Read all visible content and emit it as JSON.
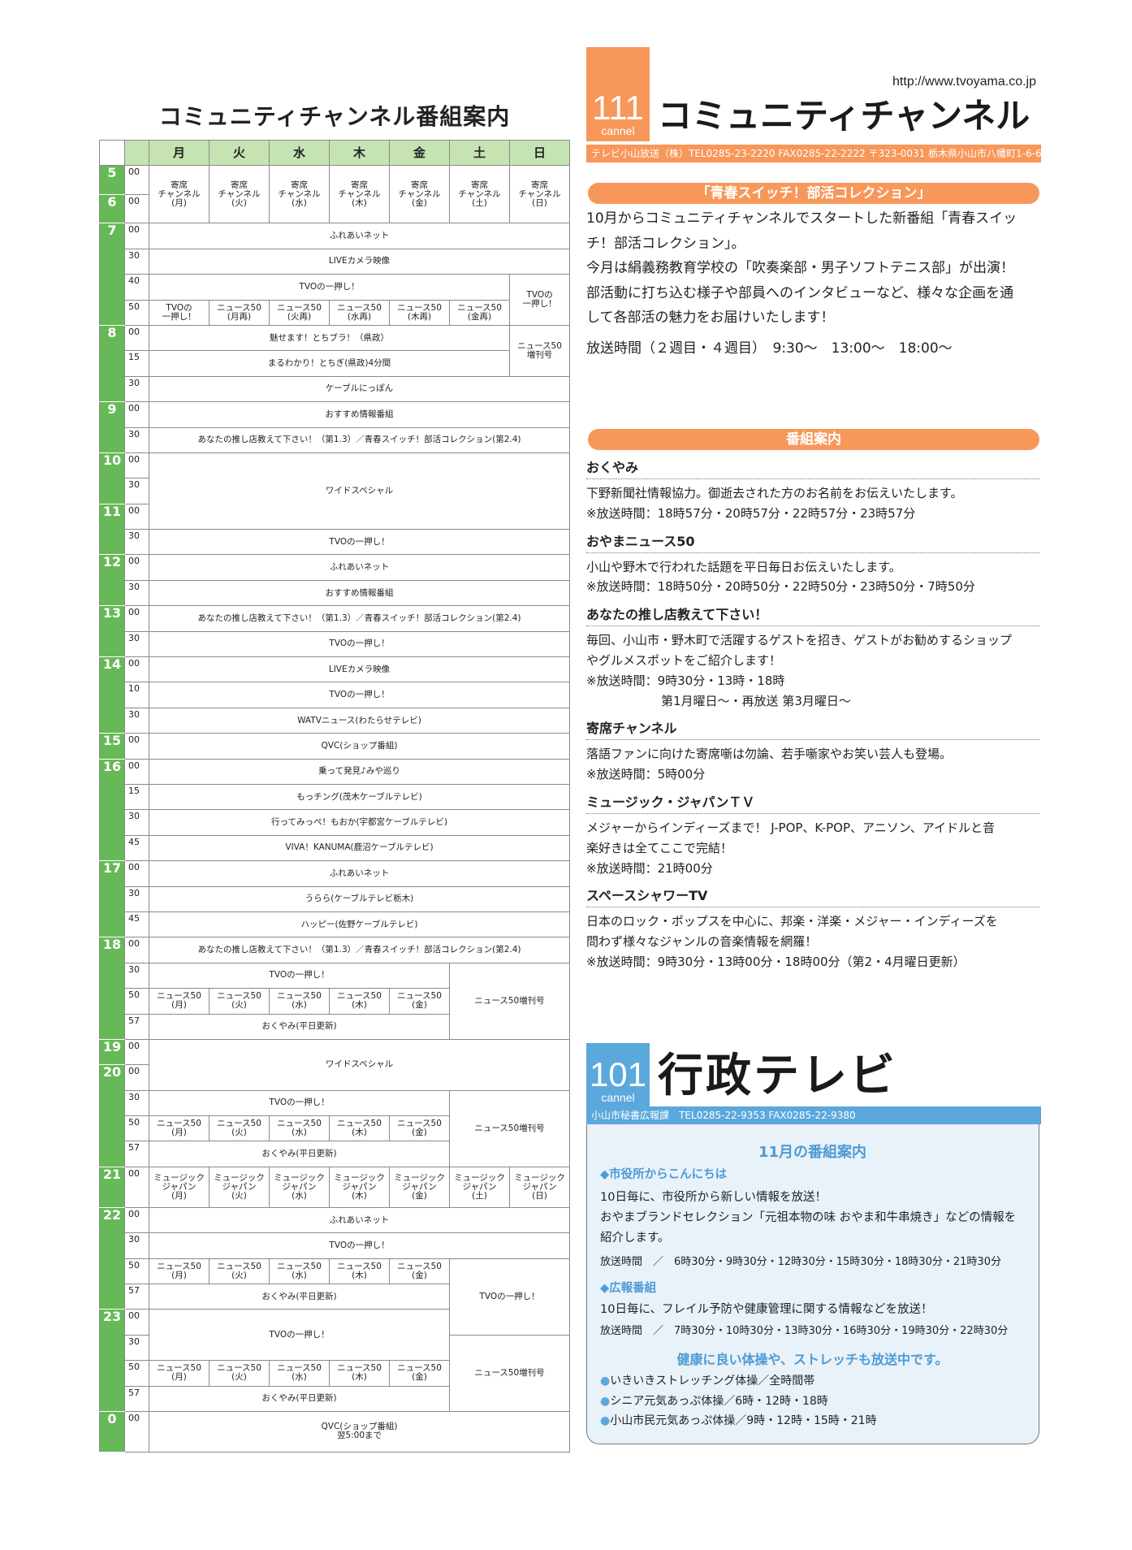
{
  "left_title": "コミュニティチャンネル番組案内",
  "schedule": {
    "days": [
      "月",
      "火",
      "水",
      "木",
      "金",
      "土",
      "日"
    ],
    "rows": [
      {
        "h": "5",
        "hs": 1,
        "m": "00",
        "cells": [
          {
            "t": "寄席\nチャンネル\n(月)",
            "r": 2
          },
          {
            "t": "寄席\nチャンネル\n(火)",
            "r": 2
          },
          {
            "t": "寄席\nチャンネル\n(水)",
            "r": 2
          },
          {
            "t": "寄席\nチャンネル\n(木)",
            "r": 2
          },
          {
            "t": "寄席\nチャンネル\n(金)",
            "r": 2
          },
          {
            "t": "寄席\nチャンネル\n(土)",
            "r": 2
          },
          {
            "t": "寄席\nチャンネル\n(日)",
            "r": 2
          }
        ]
      },
      {
        "h": "6",
        "hs": 1,
        "m": "00",
        "cells": []
      },
      {
        "h": "7",
        "hs": 4,
        "m": "00",
        "cells": [
          {
            "t": "ふれあいネット",
            "c": 7
          }
        ]
      },
      {
        "m": "30",
        "cells": [
          {
            "t": "LIVEカメラ映像",
            "c": 7
          }
        ]
      },
      {
        "m": "40",
        "cells": [
          {
            "t": "TVOの一押し！",
            "c": 6
          },
          {
            "t": "TVOの\n一押し！",
            "r": 2
          }
        ]
      },
      {
        "m": "50",
        "cells": [
          {
            "t": "TVOの\n一押し！"
          },
          {
            "t": "ニュース50\n(月再)"
          },
          {
            "t": "ニュース50\n(火再)"
          },
          {
            "t": "ニュース50\n(水再)"
          },
          {
            "t": "ニュース50\n(木再)"
          },
          {
            "t": "ニュース50\n(金再)"
          }
        ]
      },
      {
        "h": "8",
        "hs": 3,
        "m": "00",
        "cells": [
          {
            "t": "魅せます！とちブラ！（県政）",
            "c": 6
          },
          {
            "t": "ニュース50\n増刊号",
            "r": 2
          }
        ]
      },
      {
        "m": "15",
        "cells": [
          {
            "t": "まるわかり！とちぎ(県政)4分間",
            "c": 6
          }
        ]
      },
      {
        "m": "30",
        "cells": [
          {
            "t": "ケーブルにっぽん",
            "c": 7
          }
        ]
      },
      {
        "h": "9",
        "hs": 2,
        "m": "00",
        "cells": [
          {
            "t": "おすすめ情報番組",
            "c": 7
          }
        ]
      },
      {
        "m": "30",
        "cells": [
          {
            "t": "あなたの推し店教えて下さい！（第1.3）／青春スイッチ！部活コレクション(第2.4)",
            "c": 7
          }
        ]
      },
      {
        "h": "10",
        "hs": 2,
        "m": "00",
        "cells": [
          {
            "t": "ワイドスペシャル",
            "c": 7,
            "r": 3
          }
        ]
      },
      {
        "m": "30",
        "cells": []
      },
      {
        "h": "11",
        "hs": 2,
        "m": "00",
        "cells": []
      },
      {
        "m": "30",
        "cells": [
          {
            "t": "TVOの一押し！",
            "c": 7
          }
        ]
      },
      {
        "h": "12",
        "hs": 2,
        "m": "00",
        "cells": [
          {
            "t": "ふれあいネット",
            "c": 7
          }
        ]
      },
      {
        "m": "30",
        "cells": [
          {
            "t": "おすすめ情報番組",
            "c": 7
          }
        ]
      },
      {
        "h": "13",
        "hs": 2,
        "m": "00",
        "cells": [
          {
            "t": "あなたの推し店教えて下さい！（第1.3）／青春スイッチ！部活コレクション(第2.4)",
            "c": 7
          }
        ]
      },
      {
        "m": "30",
        "cells": [
          {
            "t": "TVOの一押し！",
            "c": 7
          }
        ]
      },
      {
        "h": "14",
        "hs": 3,
        "m": "00",
        "cells": [
          {
            "t": "LIVEカメラ映像",
            "c": 7
          }
        ]
      },
      {
        "m": "10",
        "cells": [
          {
            "t": "TVOの一押し！",
            "c": 7
          }
        ]
      },
      {
        "m": "30",
        "cells": [
          {
            "t": "WATVニュース(わたらせテレビ)",
            "c": 7
          }
        ]
      },
      {
        "h": "15",
        "hs": 1,
        "m": "00",
        "cells": [
          {
            "t": "QVC(ショップ番組)",
            "c": 7
          }
        ]
      },
      {
        "h": "16",
        "hs": 4,
        "m": "00",
        "cells": [
          {
            "t": "乗って発見♪みや巡り",
            "c": 7
          }
        ]
      },
      {
        "m": "15",
        "cells": [
          {
            "t": "もっチング(茂木ケーブルテレビ)",
            "c": 7
          }
        ]
      },
      {
        "m": "30",
        "cells": [
          {
            "t": "行ってみっぺ！もおか(宇都宮ケーブルテレビ)",
            "c": 7
          }
        ]
      },
      {
        "m": "45",
        "cells": [
          {
            "t": "VIVA！KANUMA(鹿沼ケーブルテレビ)",
            "c": 7
          }
        ]
      },
      {
        "h": "17",
        "hs": 3,
        "m": "00",
        "cells": [
          {
            "t": "ふれあいネット",
            "c": 7
          }
        ]
      },
      {
        "m": "30",
        "cells": [
          {
            "t": "うらら(ケーブルテレビ栃木)",
            "c": 7
          }
        ]
      },
      {
        "m": "45",
        "cells": [
          {
            "t": "ハッピー(佐野ケーブルテレビ)",
            "c": 7
          }
        ]
      },
      {
        "h": "18",
        "hs": 4,
        "m": "00",
        "cells": [
          {
            "t": "あなたの推し店教えて下さい！（第1.3）／青春スイッチ！部活コレクション(第2.4)",
            "c": 7
          }
        ]
      },
      {
        "m": "30",
        "cells": [
          {
            "t": "TVOの一押し！",
            "c": 5
          },
          {
            "t": "ニュース50増刊号",
            "c": 2,
            "r": 3
          }
        ]
      },
      {
        "m": "50",
        "cells": [
          {
            "t": "ニュース50\n(月)"
          },
          {
            "t": "ニュース50\n(火)"
          },
          {
            "t": "ニュース50\n(水)"
          },
          {
            "t": "ニュース50\n(木)"
          },
          {
            "t": "ニュース50\n(金)"
          }
        ]
      },
      {
        "m": "57",
        "cells": [
          {
            "t": "おくやみ(平日更新)",
            "c": 5
          }
        ]
      },
      {
        "h": "19",
        "hs": 1,
        "m": "00",
        "cells": [
          {
            "t": "ワイドスペシャル",
            "c": 7,
            "r": 2
          }
        ]
      },
      {
        "h": "20",
        "hs": 4,
        "m": "00",
        "cells": []
      },
      {
        "m": "30",
        "cells": [
          {
            "t": "TVOの一押し！",
            "c": 5
          },
          {
            "t": "ニュース50増刊号",
            "c": 2,
            "r": 3
          }
        ]
      },
      {
        "m": "50",
        "cells": [
          {
            "t": "ニュース50\n(月)"
          },
          {
            "t": "ニュース50\n(火)"
          },
          {
            "t": "ニュース50\n(水)"
          },
          {
            "t": "ニュース50\n(木)"
          },
          {
            "t": "ニュース50\n(金)"
          }
        ]
      },
      {
        "m": "57",
        "cells": [
          {
            "t": "おくやみ(平日更新)",
            "c": 5
          }
        ]
      },
      {
        "h": "21",
        "hs": 1,
        "m": "00",
        "cells": [
          {
            "t": "ミュージック\nジャパン\n(月)"
          },
          {
            "t": "ミュージック\nジャパン\n(火)"
          },
          {
            "t": "ミュージック\nジャパン\n(水)"
          },
          {
            "t": "ミュージック\nジャパン\n(木)"
          },
          {
            "t": "ミュージック\nジャパン\n(金)"
          },
          {
            "t": "ミュージック\nジャパン\n(土)"
          },
          {
            "t": "ミュージック\nジャパン\n(日)"
          }
        ]
      },
      {
        "h": "22",
        "hs": 4,
        "m": "00",
        "cells": [
          {
            "t": "ふれあいネット",
            "c": 7
          }
        ]
      },
      {
        "m": "30",
        "cells": [
          {
            "t": "TVOの一押し！",
            "c": 7
          }
        ]
      },
      {
        "m": "50",
        "cells": [
          {
            "t": "ニュース50\n(月)"
          },
          {
            "t": "ニュース50\n(火)"
          },
          {
            "t": "ニュース50\n(水)"
          },
          {
            "t": "ニュース50\n(木)"
          },
          {
            "t": "ニュース50\n(金)"
          },
          {
            "t": "TVOの一押し！",
            "c": 2,
            "r": 3
          }
        ]
      },
      {
        "m": "57",
        "cells": [
          {
            "t": "おくやみ(平日更新)",
            "c": 5
          }
        ]
      },
      {
        "h": "23",
        "hs": 4,
        "m": "00",
        "cells": [
          {
            "t": "TVOの一押し！",
            "c": 5,
            "r": 2
          }
        ]
      },
      {
        "m": "30",
        "cells": [
          {
            "t": "ニュース50増刊号",
            "c": 2,
            "r": 3
          }
        ]
      },
      {
        "m": "50",
        "cells": [
          {
            "t": "ニュース50\n(月)"
          },
          {
            "t": "ニュース50\n(火)"
          },
          {
            "t": "ニュース50\n(水)"
          },
          {
            "t": "ニュース50\n(木)"
          },
          {
            "t": "ニュース50\n(金)"
          }
        ]
      },
      {
        "m": "57",
        "cells": [
          {
            "t": "おくやみ(平日更新)",
            "c": 5
          }
        ]
      },
      {
        "h": "0",
        "hs": 1,
        "m": "00",
        "cells": [
          {
            "t": "QVC(ショップ番組)\n翌5:00まで",
            "c": 7
          }
        ]
      }
    ]
  },
  "community": {
    "channel_number": "111",
    "channel_word": "cannel",
    "title": "コミュニティチャンネル",
    "url": "http://www.tvoyama.co.jp",
    "address": "テレビ小山放送（株）TEL0285-23-2220 FAX0285-22-2222 〒323-0031 栃木県小山市八幡町1-6-6",
    "feature_title": "「青春スイッチ！部活コレクション」",
    "feature_lines": [
      "10月からコミュニティチャンネルでスタートした新番組「青春スイッ",
      "チ！部活コレクション」。",
      "今月は絹義務教育学校の「吹奏楽部・男子ソフトテニス部」が出演！",
      "部活動に打ち込む様子や部員へのインタビューなど、様々な企画を通",
      "して各部活の魅力をお届けいたします！"
    ],
    "feature_airtime": "放送時間（２週目・４週目）　9:30～　13:00～　18:00～",
    "guide_title": "番組案内",
    "programs": [
      {
        "name": "おくやみ",
        "lines": [
          "下野新聞社情報協力。御逝去された方のお名前をお伝えいたします。",
          "※放送時間：18時57分・20時57分・22時57分・23時57分"
        ]
      },
      {
        "name": "おやまニュース50",
        "lines": [
          "小山や野木で行われた話題を平日毎日お伝えいたします。",
          "※放送時間：18時50分・20時50分・22時50分・23時50分・7時50分"
        ]
      },
      {
        "name": "あなたの推し店教えて下さい！",
        "lines": [
          "毎回、小山市・野木町で活躍するゲストを招き、ゲストがお勧めするショップ",
          "やグルメスポットをご紹介します！",
          "※放送時間：9時30分・13時・18時"
        ],
        "indent_line": "第1月曜日～・再放送 第3月曜日～"
      },
      {
        "name": "寄席チャンネル",
        "lines": [
          "落語ファンに向けた寄席噺は勿論、若手噺家やお笑い芸人も登場。",
          "※放送時間：5時00分"
        ]
      },
      {
        "name": "ミュージック・ジャパンＴＶ",
        "lines": [
          "メジャーからインディーズまで！ J-POP、K-POP、アニソン、アイドルと音",
          "楽好きは全てここで完結！",
          "※放送時間：21時00分"
        ]
      },
      {
        "name": "スペースシャワーTV",
        "lines": [
          "日本のロック・ポップスを中心に、邦楽・洋楽・メジャー・インディーズを",
          "問わず様々なジャンルの音楽情報を網羅！",
          "※放送時間：9時30分・13時00分・18時00分（第2・4月曜日更新）"
        ]
      }
    ]
  },
  "gyosei": {
    "channel_number": "101",
    "channel_word": "cannel",
    "title": "行政テレビ",
    "address": "小山市秘書広報課　TEL0285-22-9353 FAX0285-22-9380",
    "month_title": "11月の番組案内",
    "s1_title": "◆市役所からこんにちは",
    "s1_lines": [
      "10日毎に、市役所から新しい情報を放送！",
      "おやまブランドセレクション「元祖本物の味 おやま和牛串焼き」などの情報を",
      "紹介します。"
    ],
    "s1_airtime": "放送時間　／　6時30分・9時30分・12時30分・15時30分・18時30分・21時30分",
    "s2_title": "◆広報番組",
    "s2_line": "10日毎に、フレイル予防や健康管理に関する情報などを放送！",
    "s2_airtime": "放送時間　／　7時30分・10時30分・13時30分・16時30分・19時30分・22時30分",
    "exercise_title": "健康に良い体操や、ストレッチも放送中です。",
    "exercises": [
      "いきいきストレッチング体操／全時間帯",
      "シニア元気あっぷ体操／6時・12時・18時",
      "小山市民元気あっぷ体操／9時・12時・15時・21時"
    ]
  },
  "colors": {
    "orange": "#f8975a",
    "blue": "#5ba8dd",
    "green": "#67b957",
    "light_green": "#c6e3b3",
    "panel": "#e9f1f9"
  }
}
